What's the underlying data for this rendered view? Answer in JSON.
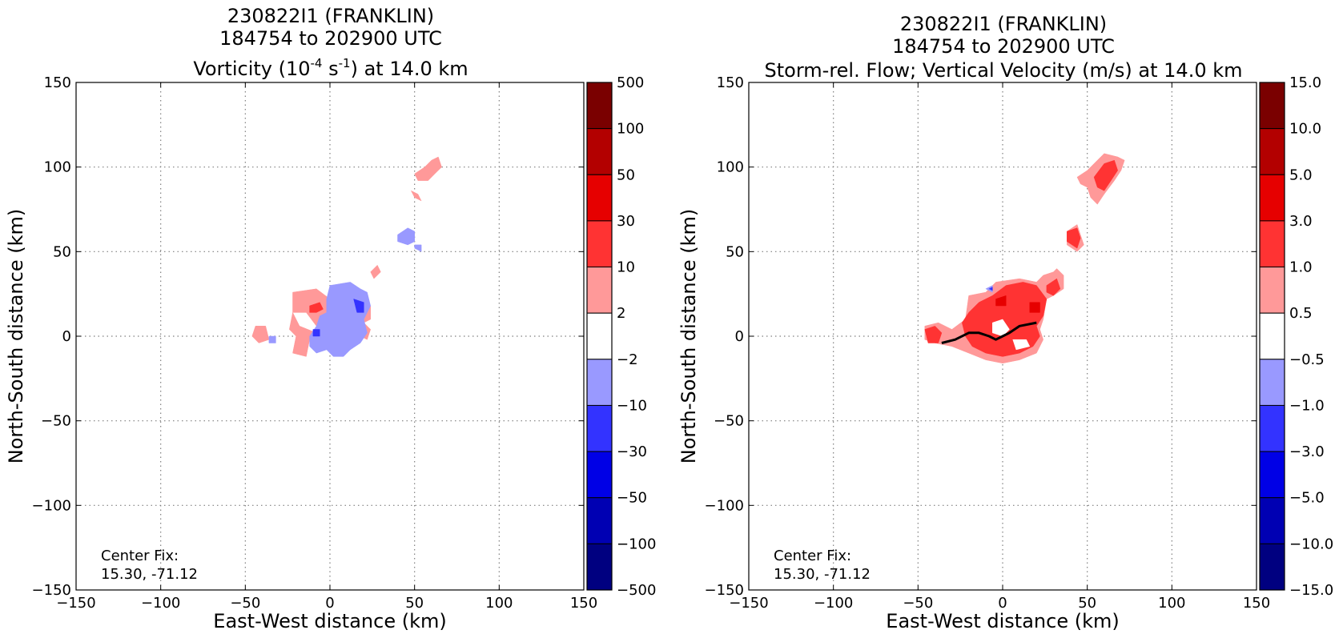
{
  "chart_data": [
    {
      "type": "heatmap",
      "title_lines": [
        "230822I1 (FRANKLIN)",
        "184754 to 202900 UTC"
      ],
      "title_line3": {
        "prefix": "Vorticity (10",
        "exp1": "-4",
        "mid": " s",
        "exp2": "-1",
        "suffix": ") at 14.0 km"
      },
      "xlabel": "East-West distance (km)",
      "ylabel": "North-South distance (km)",
      "xlim": [
        -150,
        150
      ],
      "ylim": [
        -150,
        150
      ],
      "xticks": [
        "−150",
        "−100",
        "−50",
        "0",
        "50",
        "100",
        "150"
      ],
      "yticks": [
        "150",
        "100",
        "50",
        "0",
        "−50",
        "−100",
        "−150"
      ],
      "grid": true,
      "annotation": [
        "Center Fix:",
        "15.30, -71.12"
      ],
      "colorbar": {
        "labels": [
          "500",
          "100",
          "50",
          "30",
          "10",
          "2",
          "−2",
          "−10",
          "−30",
          "−50",
          "−100",
          "−500"
        ],
        "colors": [
          "#7a0000",
          "#b30000",
          "#e60000",
          "#ff3333",
          "#ff9999",
          "#ffffff",
          "#9999ff",
          "#3333ff",
          "#0000e6",
          "#0000b3",
          "#000080"
        ]
      },
      "regions": [
        {
          "level": "#ff9999",
          "pts": [
            [
              -22,
              26
            ],
            [
              -8,
              28
            ],
            [
              0,
              22
            ],
            [
              -2,
              10
            ],
            [
              -8,
              6
            ],
            [
              -14,
              14
            ],
            [
              -22,
              14
            ],
            [
              -24,
              4
            ],
            [
              -20,
              0
            ],
            [
              -22,
              -10
            ],
            [
              -14,
              -12
            ],
            [
              -12,
              -2
            ],
            [
              -8,
              2
            ],
            [
              -18,
              6
            ],
            [
              -22,
              14
            ]
          ]
        },
        {
          "level": "#ff9999",
          "pts": [
            [
              -44,
              6
            ],
            [
              -38,
              6
            ],
            [
              -36,
              -2
            ],
            [
              -42,
              -4
            ],
            [
              -46,
              0
            ]
          ]
        },
        {
          "level": "#ff9999",
          "pts": [
            [
              4,
              18
            ],
            [
              14,
              22
            ],
            [
              16,
              14
            ],
            [
              10,
              10
            ],
            [
              4,
              12
            ]
          ]
        },
        {
          "level": "#ff9999",
          "pts": [
            [
              2,
              4
            ],
            [
              14,
              4
            ],
            [
              16,
              -4
            ],
            [
              8,
              -8
            ],
            [
              0,
              -4
            ]
          ]
        },
        {
          "level": "#ff9999",
          "pts": [
            [
              20,
              14
            ],
            [
              24,
              18
            ],
            [
              24,
              10
            ],
            [
              20,
              8
            ]
          ]
        },
        {
          "level": "#ff9999",
          "pts": [
            [
              20,
              8
            ],
            [
              24,
              4
            ],
            [
              22,
              -2
            ],
            [
              18,
              0
            ]
          ]
        },
        {
          "level": "#ff9999",
          "pts": [
            [
              24,
              38
            ],
            [
              28,
              42
            ],
            [
              30,
              38
            ],
            [
              26,
              34
            ]
          ]
        },
        {
          "level": "#ff9999",
          "pts": [
            [
              50,
              96
            ],
            [
              56,
              100
            ],
            [
              60,
              104
            ],
            [
              64,
              106
            ],
            [
              66,
              100
            ],
            [
              62,
              96
            ],
            [
              58,
              92
            ],
            [
              52,
              92
            ]
          ]
        },
        {
          "level": "#ff9999",
          "pts": [
            [
              48,
              86
            ],
            [
              52,
              84
            ],
            [
              54,
              80
            ],
            [
              50,
              82
            ]
          ]
        },
        {
          "level": "#ff3333",
          "pts": [
            [
              -12,
              18
            ],
            [
              -6,
              20
            ],
            [
              -4,
              16
            ],
            [
              -8,
              14
            ],
            [
              -12,
              14
            ]
          ]
        },
        {
          "level": "#ff3333",
          "pts": [
            [
              2,
              2
            ],
            [
              6,
              2
            ],
            [
              6,
              -2
            ],
            [
              2,
              -2
            ]
          ]
        },
        {
          "level": "#9999ff",
          "pts": [
            [
              0,
              30
            ],
            [
              12,
              32
            ],
            [
              18,
              28
            ],
            [
              22,
              26
            ],
            [
              24,
              18
            ],
            [
              20,
              10
            ],
            [
              22,
              2
            ],
            [
              18,
              -4
            ],
            [
              12,
              -8
            ],
            [
              8,
              -12
            ],
            [
              2,
              -12
            ],
            [
              -2,
              -8
            ],
            [
              -8,
              -10
            ],
            [
              -12,
              -6
            ],
            [
              -12,
              0
            ],
            [
              -8,
              6
            ],
            [
              -6,
              12
            ],
            [
              -2,
              14
            ],
            [
              -2,
              22
            ]
          ]
        },
        {
          "level": "#9999ff",
          "pts": [
            [
              40,
              60
            ],
            [
              46,
              64
            ],
            [
              50,
              62
            ],
            [
              50,
              56
            ],
            [
              46,
              54
            ],
            [
              40,
              56
            ]
          ]
        },
        {
          "level": "#9999ff",
          "pts": [
            [
              50,
              54
            ],
            [
              54,
              54
            ],
            [
              54,
              50
            ],
            [
              50,
              52
            ]
          ]
        },
        {
          "level": "#9999ff",
          "pts": [
            [
              -36,
              0
            ],
            [
              -32,
              0
            ],
            [
              -32,
              -4
            ],
            [
              -36,
              -4
            ]
          ]
        },
        {
          "level": "#3333ff",
          "pts": [
            [
              -10,
              4
            ],
            [
              -6,
              4
            ],
            [
              -6,
              0
            ],
            [
              -10,
              0
            ]
          ]
        },
        {
          "level": "#3333ff",
          "pts": [
            [
              14,
              22
            ],
            [
              20,
              20
            ],
            [
              20,
              14
            ],
            [
              16,
              14
            ]
          ]
        }
      ],
      "tracks": []
    },
    {
      "type": "heatmap",
      "title_lines": [
        "230822I1 (FRANKLIN)",
        "184754 to 202900 UTC"
      ],
      "title_line3": {
        "prefix": "Storm-rel. Flow; Vertical Velocity (m/s) at 14.0 km",
        "exp1": "",
        "mid": "",
        "exp2": "",
        "suffix": ""
      },
      "xlabel": "East-West distance (km)",
      "ylabel": "North-South distance (km)",
      "xlim": [
        -150,
        150
      ],
      "ylim": [
        -150,
        150
      ],
      "xticks": [
        "−150",
        "−100",
        "−50",
        "0",
        "50",
        "100",
        "150"
      ],
      "yticks": [
        "150",
        "100",
        "50",
        "0",
        "−50",
        "−100",
        "−150"
      ],
      "grid": true,
      "annotation": [
        "Center Fix:",
        "15.30, -71.12"
      ],
      "colorbar": {
        "labels": [
          "15.0",
          "10.0",
          "5.0",
          "3.0",
          "1.0",
          "0.5",
          "−0.5",
          "−1.0",
          "−3.0",
          "−5.0",
          "−10.0",
          "−15.0"
        ],
        "colors": [
          "#7a0000",
          "#b30000",
          "#e60000",
          "#ff3333",
          "#ff9999",
          "#ffffff",
          "#9999ff",
          "#3333ff",
          "#0000e6",
          "#0000b3",
          "#000080"
        ]
      },
      "regions": [
        {
          "level": "#ff9999",
          "pts": [
            [
              -46,
              6
            ],
            [
              -38,
              8
            ],
            [
              -30,
              4
            ],
            [
              -22,
              10
            ],
            [
              -20,
              24
            ],
            [
              -10,
              26
            ],
            [
              -4,
              32
            ],
            [
              10,
              34
            ],
            [
              20,
              32
            ],
            [
              24,
              36
            ],
            [
              30,
              38
            ],
            [
              32,
              40
            ],
            [
              36,
              36
            ],
            [
              36,
              28
            ],
            [
              30,
              24
            ],
            [
              26,
              22
            ],
            [
              24,
              10
            ],
            [
              22,
              4
            ],
            [
              24,
              -2
            ],
            [
              20,
              -10
            ],
            [
              10,
              -14
            ],
            [
              0,
              -16
            ],
            [
              -10,
              -14
            ],
            [
              -20,
              -10
            ],
            [
              -30,
              -6
            ],
            [
              -40,
              -4
            ],
            [
              -46,
              -2
            ]
          ]
        },
        {
          "level": "#ff9999",
          "pts": [
            [
              38,
              62
            ],
            [
              44,
              66
            ],
            [
              46,
              60
            ],
            [
              48,
              54
            ],
            [
              44,
              50
            ],
            [
              38,
              54
            ]
          ]
        },
        {
          "level": "#ff9999",
          "pts": [
            [
              44,
              94
            ],
            [
              50,
              98
            ],
            [
              56,
              104
            ],
            [
              60,
              108
            ],
            [
              68,
              106
            ],
            [
              72,
              104
            ],
            [
              70,
              98
            ],
            [
              66,
              92
            ],
            [
              60,
              84
            ],
            [
              56,
              78
            ],
            [
              52,
              82
            ],
            [
              50,
              88
            ],
            [
              46,
              90
            ]
          ]
        },
        {
          "level": "#ff3333",
          "pts": [
            [
              -46,
              4
            ],
            [
              -40,
              6
            ],
            [
              -36,
              2
            ],
            [
              -38,
              -4
            ],
            [
              -44,
              -4
            ]
          ]
        },
        {
          "level": "#ff3333",
          "pts": [
            [
              -20,
              14
            ],
            [
              -14,
              20
            ],
            [
              -6,
              24
            ],
            [
              2,
              30
            ],
            [
              12,
              32
            ],
            [
              20,
              30
            ],
            [
              26,
              22
            ],
            [
              24,
              12
            ],
            [
              20,
              6
            ],
            [
              22,
              0
            ],
            [
              18,
              -6
            ],
            [
              10,
              -10
            ],
            [
              0,
              -12
            ],
            [
              -10,
              -10
            ],
            [
              -18,
              -6
            ],
            [
              -22,
              0
            ],
            [
              -24,
              8
            ]
          ]
        },
        {
          "level": "#ff3333",
          "pts": [
            [
              26,
              30
            ],
            [
              32,
              34
            ],
            [
              34,
              28
            ],
            [
              30,
              24
            ],
            [
              26,
              26
            ]
          ]
        },
        {
          "level": "#ff3333",
          "pts": [
            [
              38,
              62
            ],
            [
              44,
              64
            ],
            [
              46,
              58
            ],
            [
              44,
              52
            ],
            [
              38,
              56
            ]
          ]
        },
        {
          "level": "#ff3333",
          "pts": [
            [
              54,
              94
            ],
            [
              60,
              102
            ],
            [
              66,
              104
            ],
            [
              68,
              98
            ],
            [
              64,
              92
            ],
            [
              60,
              86
            ],
            [
              56,
              88
            ]
          ]
        },
        {
          "level": "#e60000",
          "pts": [
            [
              16,
              20
            ],
            [
              22,
              20
            ],
            [
              22,
              14
            ],
            [
              16,
              14
            ]
          ]
        },
        {
          "level": "#e60000",
          "pts": [
            [
              -4,
              22
            ],
            [
              2,
              24
            ],
            [
              2,
              18
            ],
            [
              -4,
              18
            ]
          ]
        },
        {
          "level": "#ffffff",
          "pts": [
            [
              -6,
              8
            ],
            [
              0,
              10
            ],
            [
              4,
              4
            ],
            [
              0,
              0
            ],
            [
              -6,
              2
            ]
          ]
        },
        {
          "level": "#ffffff",
          "pts": [
            [
              6,
              -2
            ],
            [
              14,
              -2
            ],
            [
              16,
              -6
            ],
            [
              8,
              -8
            ]
          ]
        },
        {
          "level": "#9999ff",
          "pts": [
            [
              -10,
              28
            ],
            [
              -6,
              30
            ],
            [
              -6,
              26
            ]
          ]
        },
        {
          "level": "#3333ff",
          "pts": [
            [
              -8,
              28
            ],
            [
              -6,
              29
            ],
            [
              -6,
              27
            ]
          ]
        }
      ],
      "tracks": [
        [
          [
            -36,
            -4
          ],
          [
            -28,
            -2
          ],
          [
            -20,
            2
          ],
          [
            -14,
            2
          ],
          [
            -8,
            0
          ],
          [
            -4,
            -2
          ],
          [
            0,
            0
          ],
          [
            4,
            2
          ],
          [
            10,
            6
          ],
          [
            20,
            8
          ]
        ]
      ]
    }
  ]
}
